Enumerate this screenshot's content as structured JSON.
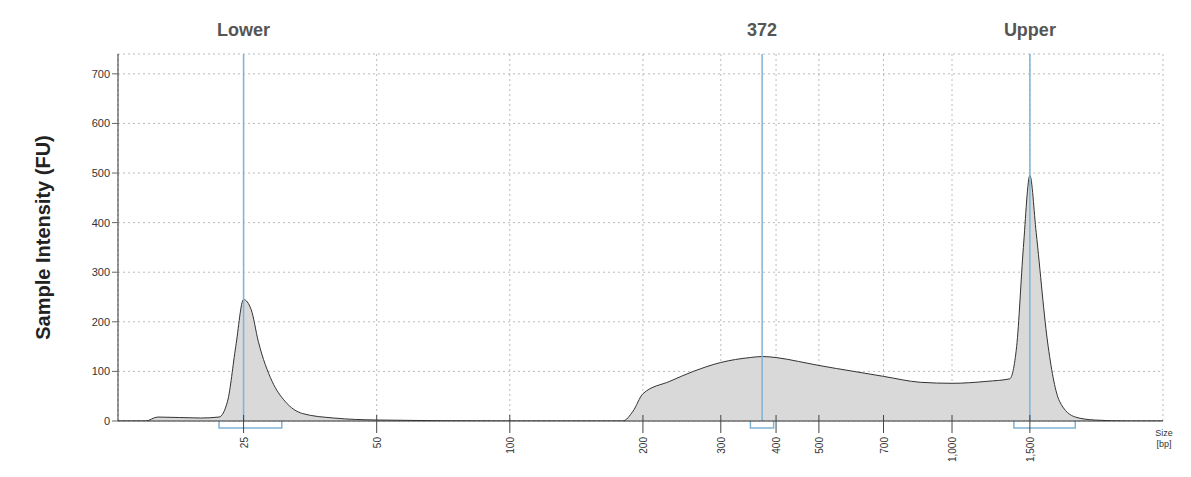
{
  "chart_data": {
    "type": "area",
    "x_label": "Size [bp]",
    "y_label": "Sample Intensity (FU)",
    "log": "x",
    "grid": true,
    "color": "#d9d9d9",
    "annotations": [
      {
        "x": 25,
        "label": "Lower",
        "range": [
          22,
          30.5
        ]
      },
      {
        "x": 372,
        "label": "372",
        "range": [
          350,
          395
        ]
      },
      {
        "x": 1500,
        "label": "Upper",
        "range": [
          1380,
          1900
        ]
      }
    ],
    "x": [
      13,
      15,
      16,
      20,
      22,
      23,
      24,
      25,
      26,
      27,
      29,
      31,
      34,
      40,
      50,
      100,
      180,
      190,
      200,
      230,
      260,
      300,
      350,
      372,
      400,
      450,
      500,
      600,
      700,
      850,
      1000,
      1200,
      1350,
      1400,
      1450,
      1500,
      1550,
      1650,
      1750,
      1900,
      2100,
      2500,
      3000
    ],
    "values": [
      0,
      0,
      8,
      6,
      8,
      40,
      150,
      245,
      225,
      160,
      80,
      40,
      15,
      6,
      2,
      0,
      0,
      20,
      55,
      80,
      100,
      118,
      128,
      130,
      128,
      120,
      112,
      100,
      90,
      78,
      76,
      80,
      85,
      150,
      350,
      495,
      380,
      150,
      40,
      8,
      2,
      0,
      0
    ],
    "xlim": [
      13,
      3000
    ],
    "xticks": [
      25,
      50,
      100,
      200,
      300,
      400,
      500,
      700,
      {
        "value": 1000,
        "label": "1,000"
      },
      {
        "value": 1500,
        "label": "1,500"
      }
    ],
    "ylim": [
      0,
      740
    ],
    "yticks": [
      0,
      100,
      200,
      300,
      400,
      500,
      600,
      700
    ]
  }
}
